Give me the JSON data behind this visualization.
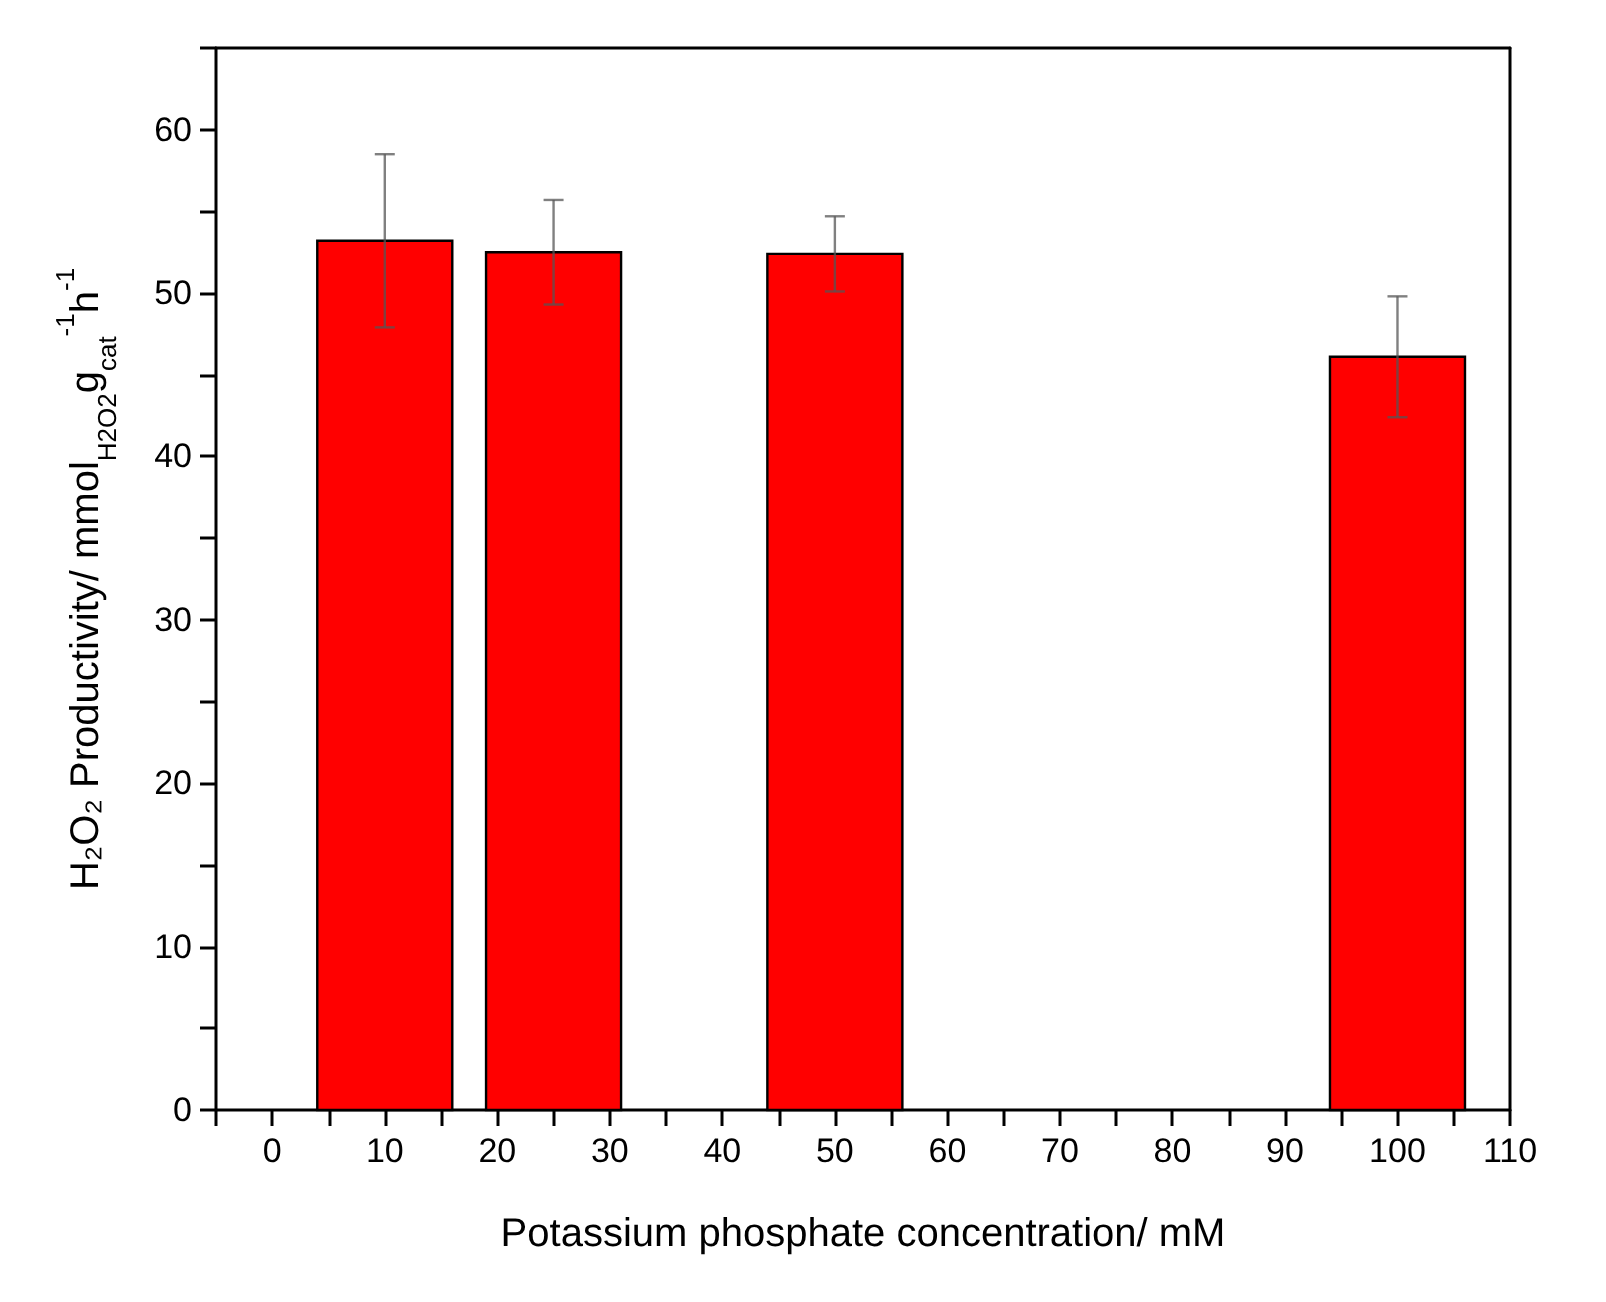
{
  "chart_data": {
    "type": "bar",
    "xlabel": "Potassium phosphate concentration/ mM",
    "ylabel": "H₂O₂ Productivity/ mmol$_{H2O2}$g$_{cat}$$^{-1}$h$^{-1}$",
    "x": [
      10,
      25,
      50,
      100
    ],
    "series": [
      {
        "color": "#ff0000",
        "values": [
          53.2,
          52.5,
          52.4,
          46.1
        ],
        "errors": [
          5.3,
          3.2,
          2.3,
          3.7
        ]
      }
    ],
    "xlim": [
      -5,
      110
    ],
    "xticks": [
      0,
      10,
      20,
      30,
      40,
      50,
      60,
      70,
      80,
      90,
      100,
      110
    ],
    "ylim": [
      0,
      65
    ],
    "yticks": [
      0,
      10,
      20,
      30,
      40,
      50,
      60
    ]
  }
}
